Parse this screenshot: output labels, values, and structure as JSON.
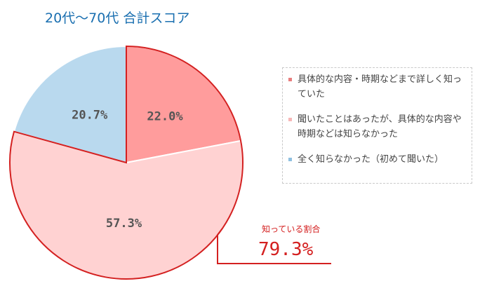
{
  "chart_data": {
    "type": "pie",
    "title": "20代～70代 合計スコア",
    "slices": [
      {
        "label": "具体的な内容・時期などまで詳しく知っていた",
        "value": 22.0,
        "display": "22.0%",
        "color": "#ff9c9c"
      },
      {
        "label": "聞いたことはあったが、具体的な内容や時期などは知らなかった",
        "value": 57.3,
        "display": "57.3%",
        "color": "#ffd2d2"
      },
      {
        "label": "全く知らなかった（初めて聞いた）",
        "value": 20.7,
        "display": "20.7%",
        "color": "#b9d9ee"
      }
    ],
    "legend_position": "right",
    "callout": {
      "label": "知っている割合",
      "value": "79.3%"
    }
  },
  "colors": {
    "title": "#1a6fb0",
    "highlight_outline": "#d42020",
    "slice_text": "#555555"
  }
}
